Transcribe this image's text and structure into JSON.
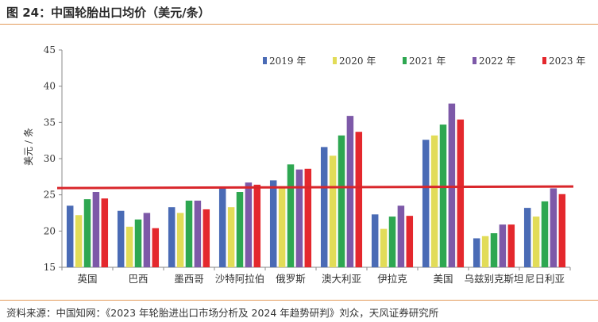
{
  "header": {
    "title": "图 24：中国轮胎出口均价（美元/条）"
  },
  "footer": {
    "source": "资料来源：中国知网：《2023 年轮胎进出口市场分析及 2024 年趋势研判》刘众，天风证券研究所"
  },
  "chart_data": {
    "type": "bar",
    "title": "",
    "xlabel": "",
    "ylabel": "美元 / 条",
    "ylim": [
      15,
      45
    ],
    "y_ticks": [
      "15",
      "20",
      "25",
      "30",
      "35",
      "40",
      "45"
    ],
    "legend_position": "top-right",
    "grid": false,
    "reference_line": {
      "value": 26.1,
      "color": "#d9262b"
    },
    "categories": [
      "英国",
      "巴西",
      "墨西哥",
      "沙特阿拉伯",
      "俄罗斯",
      "澳大利亚",
      "伊拉克",
      "美国",
      "乌兹别克斯坦",
      "尼日利亚"
    ],
    "series": [
      {
        "name": "2019 年",
        "color": "#4a6bb5",
        "values": [
          23.5,
          22.8,
          23.3,
          26.0,
          27.0,
          31.6,
          22.3,
          32.6,
          19.0,
          23.2
        ]
      },
      {
        "name": "2020 年",
        "color": "#e2dc58",
        "values": [
          22.2,
          20.6,
          22.5,
          23.3,
          26.2,
          30.4,
          20.3,
          33.2,
          19.3,
          22.0
        ]
      },
      {
        "name": "2021 年",
        "color": "#2ea751",
        "values": [
          24.4,
          21.6,
          24.2,
          25.4,
          29.2,
          33.2,
          22.0,
          34.7,
          19.7,
          24.1
        ]
      },
      {
        "name": "2022 年",
        "color": "#7d59a8",
        "values": [
          25.4,
          22.5,
          24.2,
          26.7,
          28.5,
          35.9,
          23.5,
          37.6,
          20.9,
          25.9
        ]
      },
      {
        "name": "2023 年",
        "color": "#e4282d",
        "values": [
          24.5,
          20.4,
          23.0,
          26.4,
          28.6,
          33.7,
          22.1,
          35.4,
          20.9,
          25.1
        ]
      }
    ]
  }
}
